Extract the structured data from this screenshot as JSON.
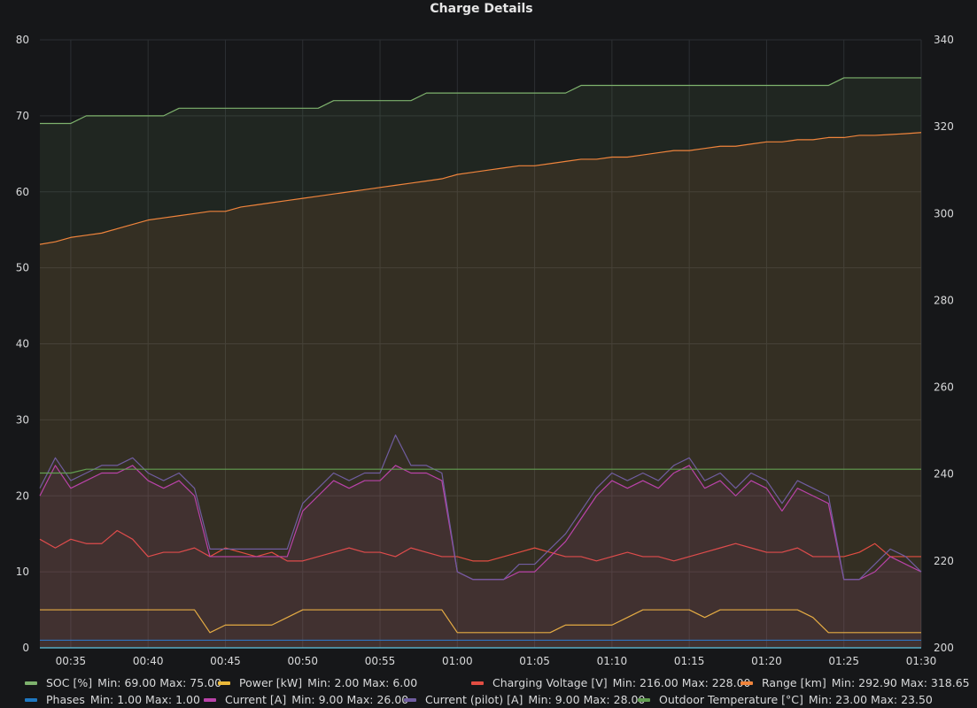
{
  "chart_data": {
    "type": "line",
    "title": "Charge Details",
    "x_ticks": [
      "00:35",
      "00:40",
      "00:45",
      "00:50",
      "00:55",
      "01:00",
      "01:05",
      "01:10",
      "01:15",
      "01:20",
      "01:25",
      "01:30"
    ],
    "x_range": [
      "00:33",
      "01:30"
    ],
    "y_left": {
      "ticks": [
        0,
        10,
        20,
        30,
        40,
        50,
        60,
        70,
        80
      ],
      "range": [
        0,
        80
      ]
    },
    "y_right": {
      "ticks": [
        200,
        220,
        240,
        260,
        280,
        300,
        320,
        340
      ],
      "range": [
        200,
        340
      ]
    },
    "series": [
      {
        "name": "SOC [%]",
        "color": "#7eb26d",
        "axis": "left",
        "fill": true,
        "x": [
          0,
          2,
          3,
          4,
          5,
          6,
          8,
          9,
          10,
          11,
          12,
          13,
          14,
          15,
          16,
          17,
          18,
          19,
          20,
          21,
          22,
          23,
          24,
          25,
          26,
          27,
          28,
          29,
          30,
          31,
          32,
          33,
          34,
          35,
          36,
          37,
          38,
          39,
          40,
          41,
          42,
          43,
          44,
          45,
          46,
          47,
          48,
          49,
          50,
          51,
          52,
          53,
          54,
          55,
          56,
          57
        ],
        "y": [
          69,
          69,
          70,
          70,
          70,
          70,
          70,
          71,
          71,
          71,
          71,
          71,
          71,
          71,
          71,
          71,
          71,
          72,
          72,
          72,
          72,
          72,
          72,
          73,
          73,
          73,
          73,
          73,
          73,
          73,
          73,
          73,
          73,
          74,
          74,
          74,
          74,
          74,
          74,
          74,
          74,
          74,
          74,
          74,
          74,
          74,
          74,
          74,
          74,
          74,
          75,
          75,
          75,
          75,
          75,
          75
        ]
      },
      {
        "name": "Range [km]",
        "color": "#ef843c",
        "axis": "right",
        "fill": true,
        "x": [
          0,
          1,
          2,
          3,
          4,
          5,
          6,
          7,
          8,
          9,
          10,
          11,
          12,
          13,
          14,
          15,
          16,
          17,
          18,
          19,
          20,
          21,
          22,
          23,
          24,
          25,
          26,
          27,
          28,
          29,
          30,
          31,
          32,
          33,
          34,
          35,
          36,
          37,
          38,
          39,
          40,
          41,
          42,
          43,
          44,
          45,
          46,
          47,
          48,
          49,
          50,
          51,
          52,
          53,
          54,
          55,
          56,
          57
        ],
        "y": [
          292.9,
          293.5,
          294.5,
          295,
          295.5,
          296.5,
          297.5,
          298.5,
          299,
          299.5,
          300,
          300.5,
          300.5,
          301.5,
          302,
          302.5,
          303,
          303.5,
          304,
          304.5,
          305,
          305.5,
          306,
          306.5,
          307,
          307.5,
          308,
          309,
          309.5,
          310,
          310.5,
          311,
          311,
          311.5,
          312,
          312.5,
          312.5,
          313,
          313,
          313.5,
          314,
          314.5,
          314.5,
          315,
          315.5,
          315.5,
          316,
          316.5,
          316.5,
          317,
          317,
          317.5,
          317.5,
          318,
          318,
          318.2,
          318.4,
          318.65
        ]
      },
      {
        "name": "Charging Voltage [V]",
        "color": "#e24d42",
        "axis": "right",
        "fill": false,
        "x": [
          0,
          1,
          2,
          3,
          4,
          5,
          6,
          7,
          8,
          9,
          10,
          11,
          12,
          13,
          14,
          15,
          16,
          17,
          18,
          19,
          20,
          21,
          22,
          23,
          24,
          25,
          26,
          27,
          28,
          29,
          30,
          31,
          32,
          33,
          34,
          35,
          36,
          37,
          38,
          39,
          40,
          41,
          42,
          43,
          44,
          45,
          46,
          47,
          48,
          49,
          50,
          51,
          52,
          53,
          54,
          55,
          56,
          57
        ],
        "y": [
          225,
          223,
          225,
          224,
          224,
          227,
          225,
          221,
          222,
          222,
          223,
          221,
          223,
          222,
          221,
          222,
          220,
          220,
          221,
          222,
          223,
          222,
          222,
          221,
          223,
          222,
          221,
          221,
          220,
          220,
          221,
          222,
          223,
          222,
          221,
          221,
          220,
          221,
          222,
          221,
          221,
          220,
          221,
          222,
          223,
          224,
          223,
          222,
          222,
          223,
          221,
          221,
          221,
          222,
          224,
          221,
          221,
          221
        ]
      },
      {
        "name": "Power [kW]",
        "color": "#eab839",
        "axis": "left",
        "fill": false,
        "x": [
          0,
          1,
          2,
          3,
          4,
          5,
          6,
          7,
          8,
          9,
          10,
          11,
          12,
          13,
          14,
          15,
          16,
          17,
          18,
          19,
          20,
          21,
          22,
          23,
          24,
          25,
          26,
          27,
          28,
          29,
          30,
          31,
          32,
          33,
          34,
          35,
          36,
          37,
          38,
          39,
          40,
          41,
          42,
          43,
          44,
          45,
          46,
          47,
          48,
          49,
          50,
          51,
          52,
          53,
          54,
          55,
          56,
          57
        ],
        "y": [
          5,
          5,
          5,
          5,
          5,
          5,
          5,
          5,
          5,
          5,
          5,
          2,
          3,
          3,
          3,
          3,
          4,
          5,
          5,
          5,
          5,
          5,
          5,
          5,
          5,
          5,
          5,
          2,
          2,
          2,
          2,
          2,
          2,
          2,
          3,
          3,
          3,
          3,
          4,
          5,
          5,
          5,
          5,
          4,
          5,
          5,
          5,
          5,
          5,
          5,
          4,
          2,
          2,
          2,
          2,
          2,
          2,
          2
        ]
      },
      {
        "name": "Phases",
        "color": "#1f78c1",
        "axis": "left",
        "fill": false,
        "x": [
          0,
          57
        ],
        "y": [
          1,
          1
        ]
      },
      {
        "name": "Current [A]",
        "color": "#ba43a9",
        "axis": "left",
        "fill": true,
        "x": [
          0,
          1,
          2,
          3,
          4,
          5,
          6,
          7,
          8,
          9,
          10,
          11,
          12,
          13,
          14,
          15,
          16,
          17,
          18,
          19,
          20,
          21,
          22,
          23,
          24,
          25,
          26,
          27,
          28,
          29,
          30,
          31,
          32,
          33,
          34,
          35,
          36,
          37,
          38,
          39,
          40,
          41,
          42,
          43,
          44,
          45,
          46,
          47,
          48,
          49,
          50,
          51,
          52,
          53,
          54,
          55,
          56,
          57
        ],
        "y": [
          20,
          24,
          21,
          22,
          23,
          23,
          24,
          22,
          21,
          22,
          20,
          12,
          12,
          12,
          12,
          12,
          12,
          18,
          20,
          22,
          21,
          22,
          22,
          24,
          23,
          23,
          22,
          10,
          9,
          9,
          9,
          10,
          10,
          12,
          14,
          17,
          20,
          22,
          21,
          22,
          21,
          23,
          24,
          21,
          22,
          20,
          22,
          21,
          18,
          21,
          20,
          19,
          9,
          9,
          10,
          12,
          11,
          10
        ]
      },
      {
        "name": "Current (pilot) [A]",
        "color": "#705da0",
        "axis": "left",
        "fill": false,
        "x": [
          0,
          1,
          2,
          3,
          4,
          5,
          6,
          7,
          8,
          9,
          10,
          11,
          12,
          13,
          14,
          15,
          16,
          17,
          18,
          19,
          20,
          21,
          22,
          23,
          24,
          25,
          26,
          27,
          28,
          29,
          30,
          31,
          32,
          33,
          34,
          35,
          36,
          37,
          38,
          39,
          40,
          41,
          42,
          43,
          44,
          45,
          46,
          47,
          48,
          49,
          50,
          51,
          52,
          53,
          54,
          55,
          56,
          57
        ],
        "y": [
          21,
          25,
          22,
          23,
          24,
          24,
          25,
          23,
          22,
          23,
          21,
          13,
          13,
          13,
          13,
          13,
          13,
          19,
          21,
          23,
          22,
          23,
          23,
          28,
          24,
          24,
          23,
          10,
          9,
          9,
          9,
          11,
          11,
          13,
          15,
          18,
          21,
          23,
          22,
          23,
          22,
          24,
          25,
          22,
          23,
          21,
          23,
          22,
          19,
          22,
          21,
          20,
          9,
          9,
          11,
          13,
          12,
          10
        ]
      },
      {
        "name": "Outdoor Temperature [°C]",
        "color": "#629e51",
        "axis": "left",
        "fill": false,
        "x": [
          0,
          2,
          3,
          4,
          57
        ],
        "y": [
          23,
          23,
          23.5,
          23.5,
          23.5
        ]
      }
    ]
  },
  "legend": [
    {
      "name": "SOC [%]",
      "min": "Min: 69.00",
      "max": "Max: 75.00",
      "color": "#7eb26d"
    },
    {
      "name": "Power [kW]",
      "min": "Min: 2.00",
      "max": "Max: 6.00",
      "color": "#eab839"
    },
    {
      "name": "Charging Voltage [V]",
      "min": "Min: 216.00",
      "max": "Max: 228.00",
      "color": "#e24d42"
    },
    {
      "name": "Range [km]",
      "min": "Min: 292.90",
      "max": "Max: 318.65",
      "color": "#ef843c"
    },
    {
      "name": "Phases",
      "min": "Min: 1.00",
      "max": "Max: 1.00",
      "color": "#1f78c1"
    },
    {
      "name": "Current [A]",
      "min": "Min: 9.00",
      "max": "Max: 26.00",
      "color": "#ba43a9"
    },
    {
      "name": "Current (pilot) [A]",
      "min": "Min: 9.00",
      "max": "Max: 28.00",
      "color": "#705da0"
    },
    {
      "name": "Outdoor Temperature [°C]",
      "min": "Min: 23.00",
      "max": "Max: 23.50",
      "color": "#629e51"
    }
  ]
}
